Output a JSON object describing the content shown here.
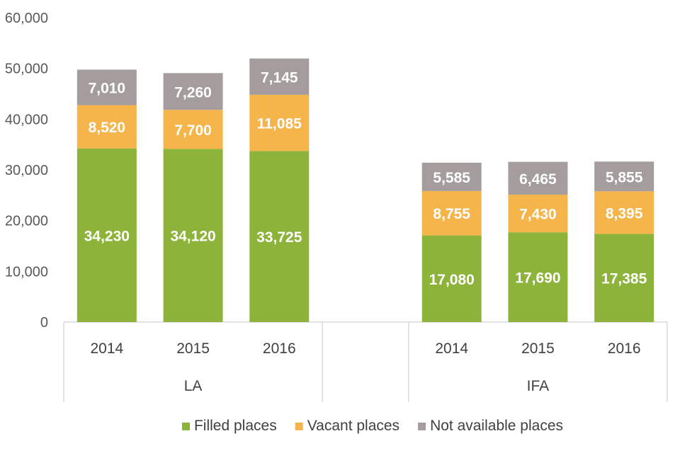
{
  "chart_data": {
    "type": "bar",
    "stacked": true,
    "groups": [
      {
        "name": "LA",
        "categories": [
          "2014",
          "2015",
          "2016"
        ]
      },
      {
        "name": "",
        "categories": [
          ""
        ]
      },
      {
        "name": "IFA",
        "categories": [
          "2014",
          "2015",
          "2016"
        ]
      }
    ],
    "series": [
      {
        "name": "Filled places",
        "color": "#8db33b",
        "values": [
          34230,
          34120,
          33725,
          null,
          17080,
          17690,
          17385
        ],
        "labels": [
          "34,230",
          "34,120",
          "33,725",
          null,
          "17,080",
          "17,690",
          "17,385"
        ]
      },
      {
        "name": "Vacant places",
        "color": "#f6b54b",
        "values": [
          8520,
          7700,
          11085,
          null,
          8755,
          7430,
          8395
        ],
        "labels": [
          "8,520",
          "7,700",
          "11,085",
          null,
          "8,755",
          "7,430",
          "8,395"
        ]
      },
      {
        "name": "Not available places",
        "color": "#a59d9d",
        "values": [
          7010,
          7260,
          7145,
          null,
          5585,
          6465,
          5855
        ],
        "labels": [
          "7,010",
          "7,260",
          "7,145",
          null,
          "5,585",
          "6,465",
          "5,855"
        ]
      }
    ],
    "y_ticks": [
      "0",
      "10,000",
      "20,000",
      "30,000",
      "40,000",
      "50,000",
      "60,000"
    ],
    "ylim": [
      0,
      60000
    ],
    "legend_position": "bottom",
    "grid": false
  }
}
